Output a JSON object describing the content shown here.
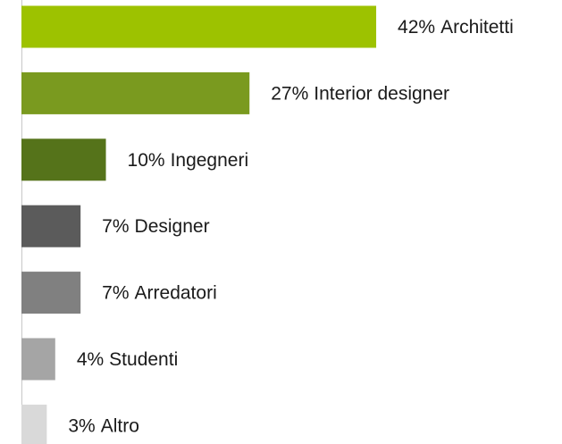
{
  "chart_data": {
    "type": "hbar",
    "categories": [
      "Architetti",
      "Interior designer",
      "Ingegneri",
      "Designer",
      "Arredatori",
      "Studenti",
      "Altro"
    ],
    "values": [
      42,
      27,
      10,
      7,
      7,
      4,
      3
    ],
    "value_labels": [
      "42%",
      "27%",
      "10%",
      "7%",
      "7%",
      "4%",
      "3%"
    ],
    "colors": [
      "#9dc200",
      "#7a9a1f",
      "#55731a",
      "#5b5b5b",
      "#808080",
      "#a5a5a5",
      "#d9d9d9"
    ],
    "xlim": [
      0,
      64
    ]
  }
}
